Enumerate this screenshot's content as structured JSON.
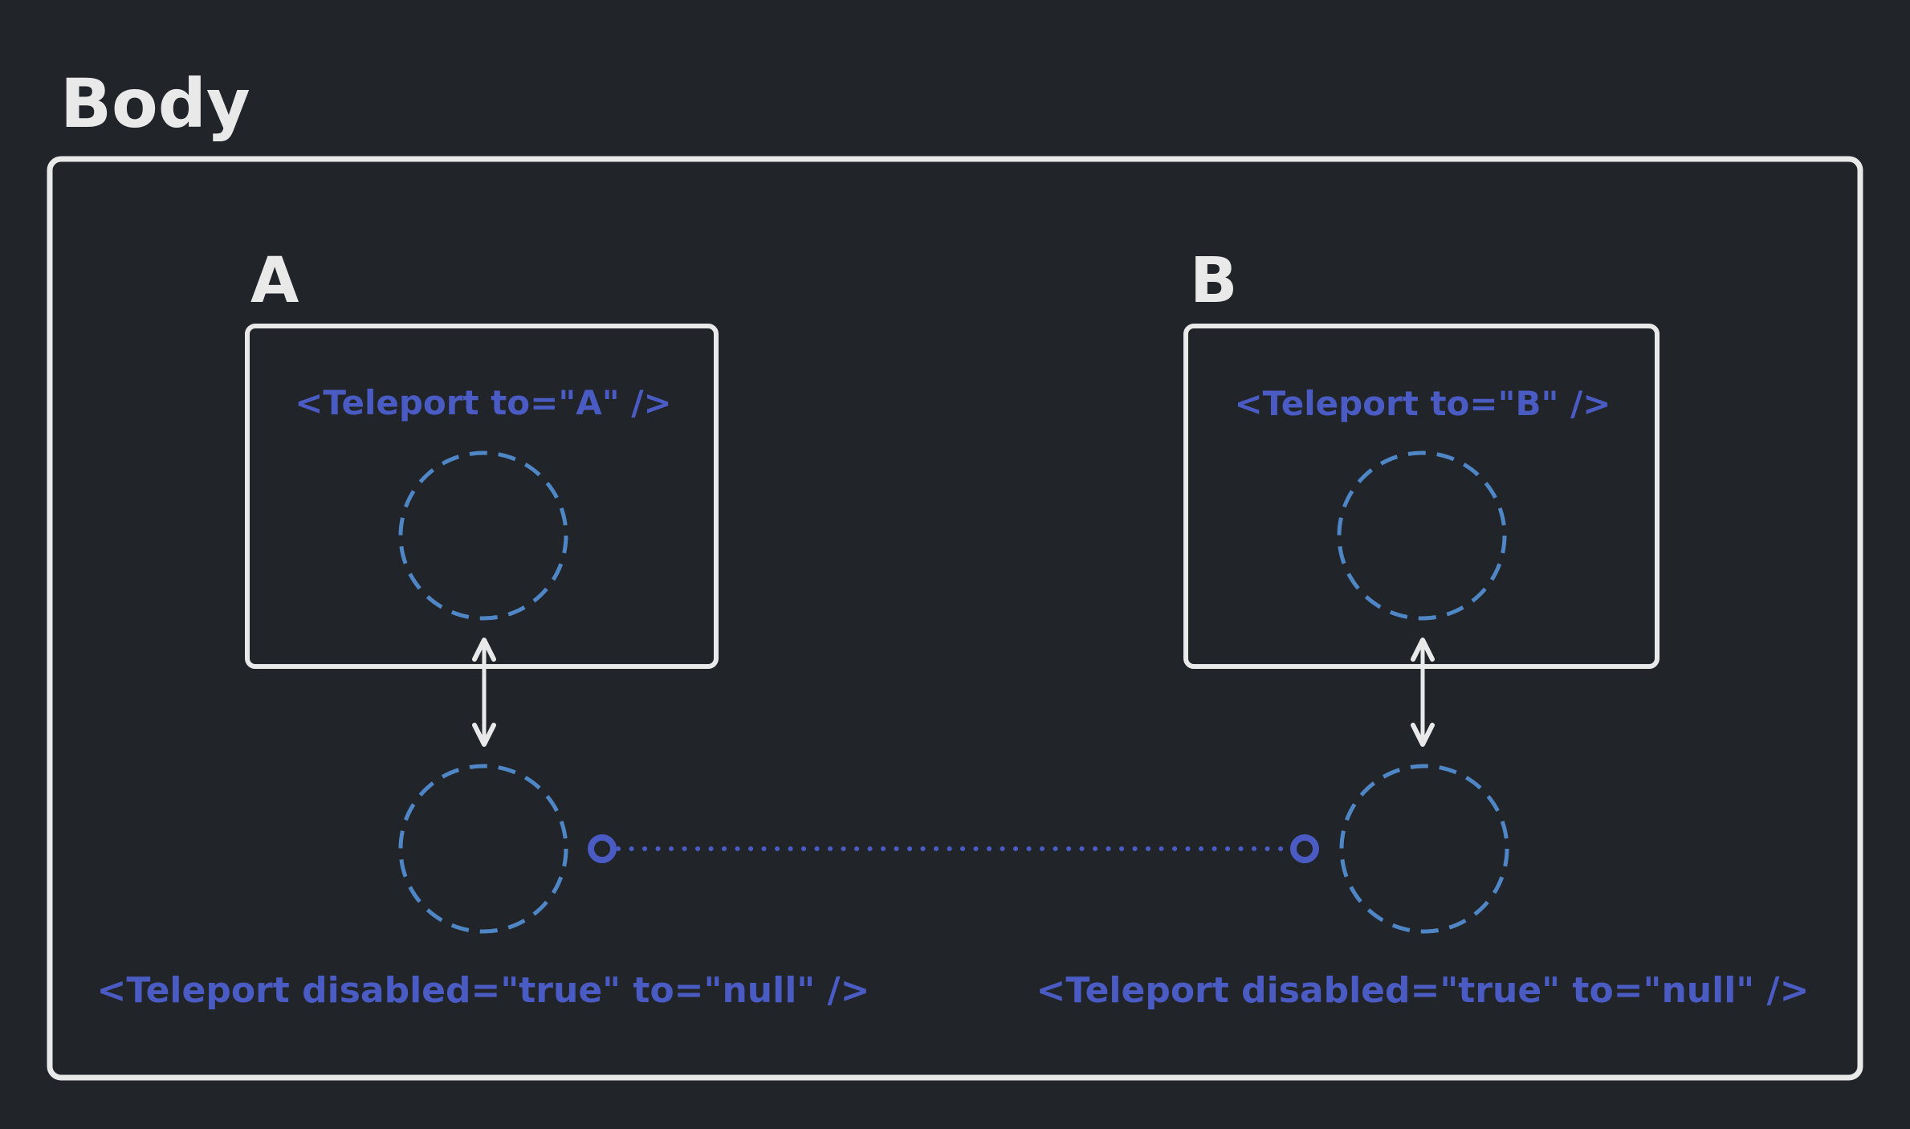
{
  "labels": {
    "body_title": "Body",
    "container_a_title": "A",
    "container_b_title": "B",
    "teleport_a": "<Teleport to=\"A\" />",
    "teleport_b": "<Teleport to=\"B\" />",
    "disabled_left": "<Teleport disabled=\"true\" to=\"null\" />",
    "disabled_right": "<Teleport disabled=\"true\" to=\"null\" />"
  },
  "colors": {
    "background": "#212429",
    "outline": "#e9e9e9",
    "code_text": "#4a5cc4",
    "dashed_circle": "#4f86c6",
    "connector": "#4a5cc4"
  }
}
